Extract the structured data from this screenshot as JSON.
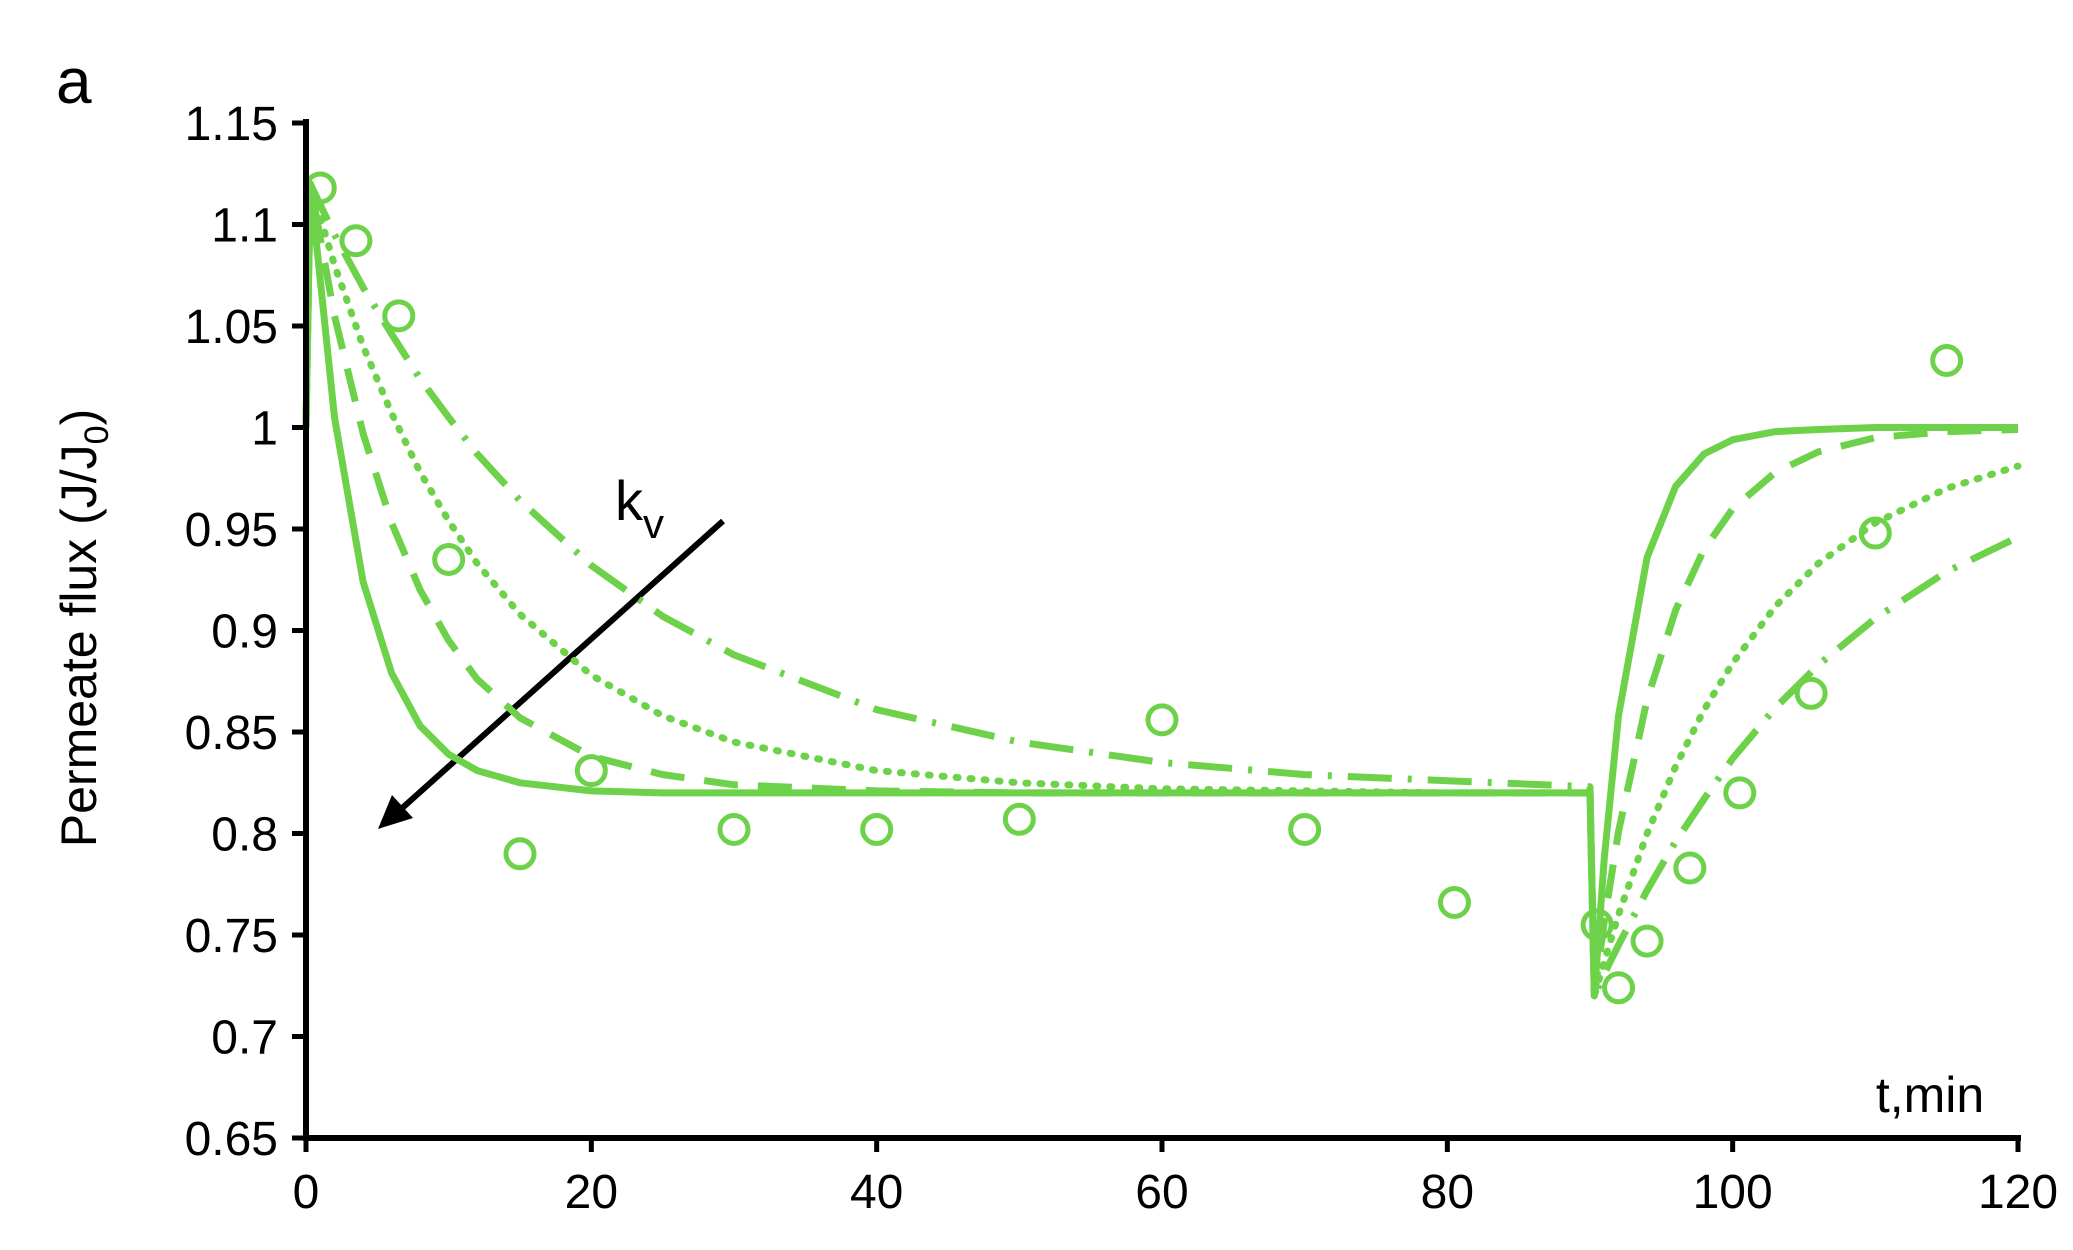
{
  "chart_data": {
    "type": "line",
    "panel_label": "a",
    "ylabel": {
      "text": "Permeate  flux (J/J",
      "subscript": "0",
      "suffix": ")"
    },
    "xlabel": "t,min",
    "annotation": {
      "text": "k",
      "subscript": "v"
    },
    "xlim": [
      0,
      120
    ],
    "xticks": [
      0,
      20,
      40,
      60,
      80,
      100,
      120
    ],
    "ylim": [
      0.65,
      1.15
    ],
    "yticks": [
      0.65,
      0.7,
      0.75,
      0.8,
      0.85,
      0.9,
      0.95,
      1,
      1.05,
      1.1,
      1.15
    ],
    "series": [
      {
        "style": "markers",
        "color": "#6dd24a",
        "x": [
          1,
          3.5,
          6.5,
          10,
          15,
          20,
          30,
          40,
          50,
          60,
          70,
          80.5,
          90.5,
          92,
          94,
          97,
          100.5,
          105.5,
          110,
          115
        ],
        "values": [
          1.118,
          1.092,
          1.055,
          0.935,
          0.79,
          0.831,
          0.802,
          0.802,
          0.807,
          0.856,
          0.802,
          0.766,
          0.755,
          0.724,
          0.747,
          0.783,
          0.82,
          0.869,
          0.948,
          1.033
        ]
      },
      {
        "style": "solid",
        "color": "#6dd24a",
        "x": [
          0,
          0.3,
          2,
          4,
          6,
          8,
          10,
          12,
          15,
          20,
          25,
          30,
          40,
          50,
          60,
          70,
          80,
          90,
          90.3,
          91,
          92,
          94,
          96,
          98,
          100,
          103,
          106,
          110,
          115,
          120
        ],
        "values": [
          1.0,
          1.12,
          1.005,
          0.924,
          0.879,
          0.853,
          0.839,
          0.831,
          0.825,
          0.821,
          0.82,
          0.82,
          0.82,
          0.82,
          0.82,
          0.82,
          0.82,
          0.82,
          0.72,
          0.788,
          0.858,
          0.936,
          0.971,
          0.987,
          0.994,
          0.998,
          0.999,
          1.0,
          1.0,
          1.0
        ]
      },
      {
        "style": "dashed",
        "color": "#6dd24a",
        "x": [
          0,
          0.3,
          2,
          4,
          6,
          8,
          10,
          12,
          15,
          20,
          25,
          30,
          40,
          50,
          60,
          70,
          80,
          90,
          90.3,
          91,
          92,
          94,
          96,
          98,
          100,
          103,
          106,
          110,
          115,
          120
        ],
        "values": [
          1.0,
          1.12,
          1.055,
          0.997,
          0.953,
          0.92,
          0.895,
          0.876,
          0.857,
          0.838,
          0.829,
          0.824,
          0.821,
          0.82,
          0.82,
          0.82,
          0.82,
          0.82,
          0.72,
          0.757,
          0.801,
          0.866,
          0.91,
          0.94,
          0.96,
          0.978,
          0.988,
          0.995,
          0.998,
          0.999
        ]
      },
      {
        "style": "dotted",
        "color": "#6dd24a",
        "x": [
          0,
          0.3,
          2,
          4,
          6,
          8,
          10,
          12,
          15,
          20,
          25,
          30,
          40,
          50,
          60,
          70,
          80,
          90,
          90.3,
          91,
          92,
          94,
          96,
          98,
          100,
          103,
          106,
          110,
          115,
          120
        ],
        "values": [
          1.0,
          1.12,
          1.08,
          1.04,
          1.007,
          0.978,
          0.954,
          0.933,
          0.908,
          0.878,
          0.858,
          0.845,
          0.831,
          0.825,
          0.822,
          0.821,
          0.82,
          0.82,
          0.72,
          0.737,
          0.76,
          0.8,
          0.833,
          0.861,
          0.884,
          0.912,
          0.933,
          0.953,
          0.97,
          0.981
        ]
      },
      {
        "style": "dashdot",
        "color": "#6dd24a",
        "x": [
          0,
          0.3,
          2,
          4,
          6,
          8,
          10,
          12,
          15,
          20,
          25,
          30,
          40,
          50,
          60,
          70,
          80,
          90,
          90.3,
          91,
          92,
          94,
          96,
          98,
          100,
          103,
          106,
          110,
          115,
          120
        ],
        "values": [
          1.0,
          1.12,
          1.095,
          1.069,
          1.046,
          1.024,
          1.005,
          0.987,
          0.964,
          0.932,
          0.907,
          0.888,
          0.861,
          0.845,
          0.835,
          0.829,
          0.826,
          0.823,
          0.72,
          0.731,
          0.745,
          0.772,
          0.796,
          0.817,
          0.837,
          0.862,
          0.883,
          0.906,
          0.929,
          0.946
        ]
      }
    ]
  }
}
